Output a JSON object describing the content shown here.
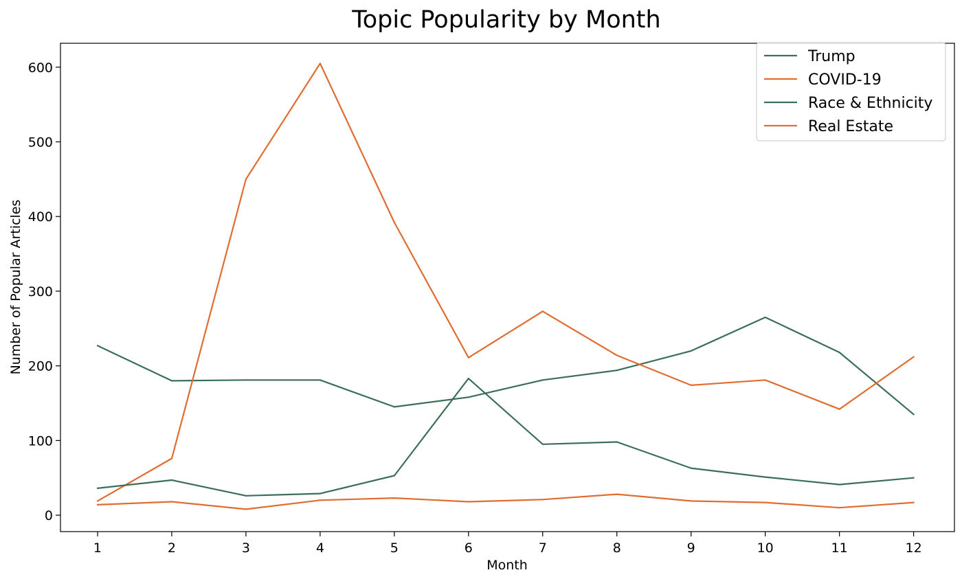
{
  "chart_data": {
    "type": "line",
    "title": "Topic Popularity by Month",
    "xlabel": "Month",
    "ylabel": "Number of Popular Articles",
    "x": [
      1,
      2,
      3,
      4,
      5,
      6,
      7,
      8,
      9,
      10,
      11,
      12
    ],
    "xlim": [
      0.5,
      12.55
    ],
    "ylim": [
      -22,
      632
    ],
    "yticks": [
      0,
      100,
      200,
      300,
      400,
      500,
      600
    ],
    "grid": false,
    "legend_position": "top-right",
    "series": [
      {
        "name": "Trump",
        "color": "#3b6e57",
        "values": [
          227,
          180,
          181,
          181,
          145,
          158,
          181,
          194,
          220,
          265,
          218,
          135
        ]
      },
      {
        "name": "COVID-19",
        "color": "#e06c2f",
        "values": [
          19,
          76,
          450,
          605,
          392,
          211,
          273,
          214,
          174,
          181,
          142,
          212
        ]
      },
      {
        "name": "Race & Ethnicity",
        "color": "#3b6e57",
        "values": [
          36,
          47,
          26,
          29,
          53,
          183,
          95,
          98,
          63,
          51,
          41,
          50
        ]
      },
      {
        "name": "Real Estate",
        "color": "#e06c2f",
        "values": [
          14,
          18,
          8,
          20,
          23,
          18,
          21,
          28,
          19,
          17,
          10,
          17
        ]
      }
    ]
  }
}
